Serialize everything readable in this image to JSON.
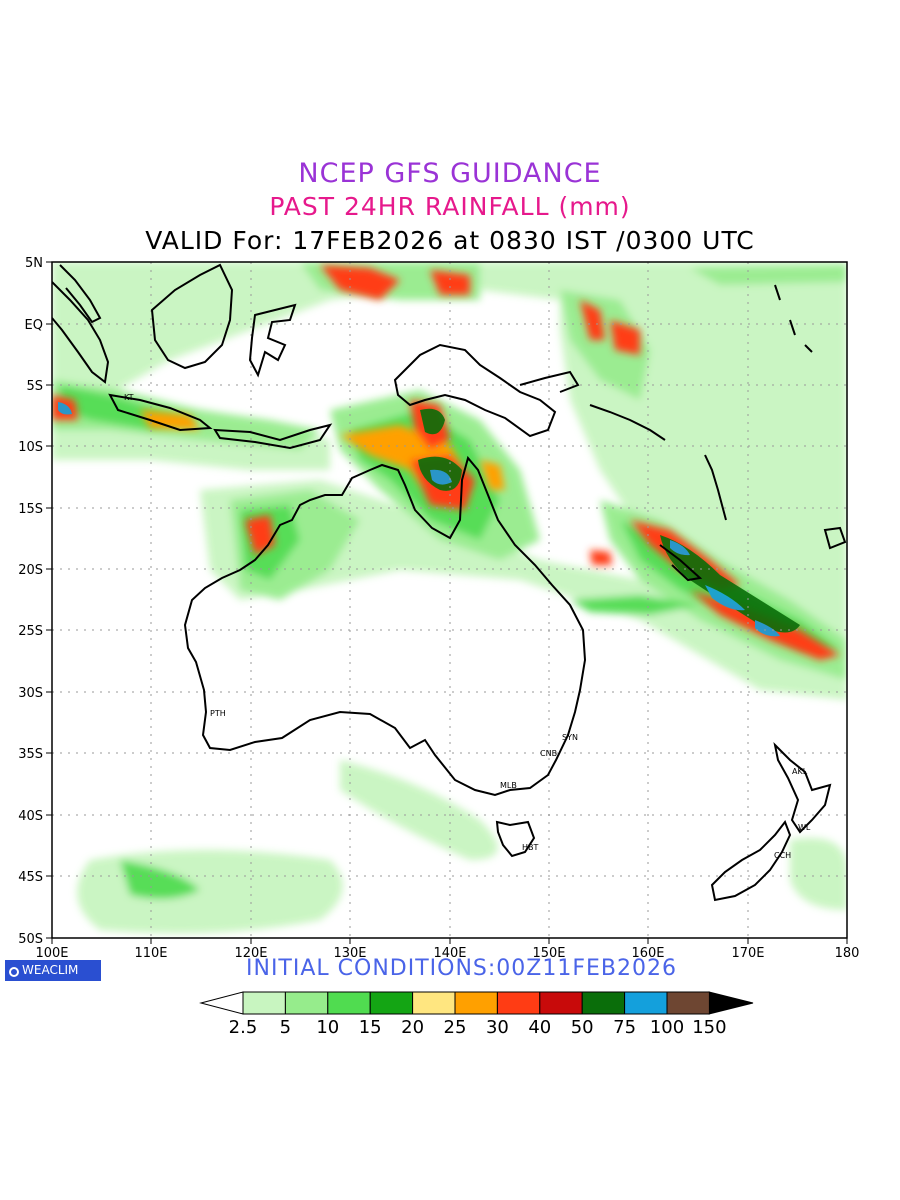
{
  "title": {
    "line1": "NCEP GFS GUIDANCE",
    "line2": "PAST 24HR RAINFALL (mm)",
    "line3": "VALID For: 17FEB2026 at 0830 IST /0300 UTC"
  },
  "initial_conditions": "INITIAL  CONDITIONS:00Z11FEB2026",
  "brand": "WEACLIM",
  "axes": {
    "lat_labels": [
      "5N",
      "EQ",
      "5S",
      "10S",
      "15S",
      "20S",
      "25S",
      "30S",
      "35S",
      "40S",
      "45S",
      "50S"
    ],
    "lon_labels": [
      "100E",
      "110E",
      "120E",
      "130E",
      "140E",
      "150E",
      "160E",
      "170E",
      "180"
    ]
  },
  "colorbar": {
    "labels": [
      "2.5",
      "5",
      "10",
      "15",
      "20",
      "25",
      "30",
      "40",
      "50",
      "75",
      "100",
      "150"
    ],
    "colors": [
      "#c8f5c0",
      "#96ec8c",
      "#50dc50",
      "#14a514",
      "#ffe680",
      "#ffa000",
      "#ff3c14",
      "#c80a0a",
      "#0a6e0a",
      "#14a0dc",
      "#6e4632"
    ]
  },
  "cities": [
    {
      "name": "PTH"
    },
    {
      "name": "SYN"
    },
    {
      "name": "CNB"
    },
    {
      "name": "MLB"
    },
    {
      "name": "HBT"
    },
    {
      "name": "KT"
    },
    {
      "name": "CCH"
    },
    {
      "name": "WL"
    },
    {
      "name": "AKL"
    }
  ]
}
